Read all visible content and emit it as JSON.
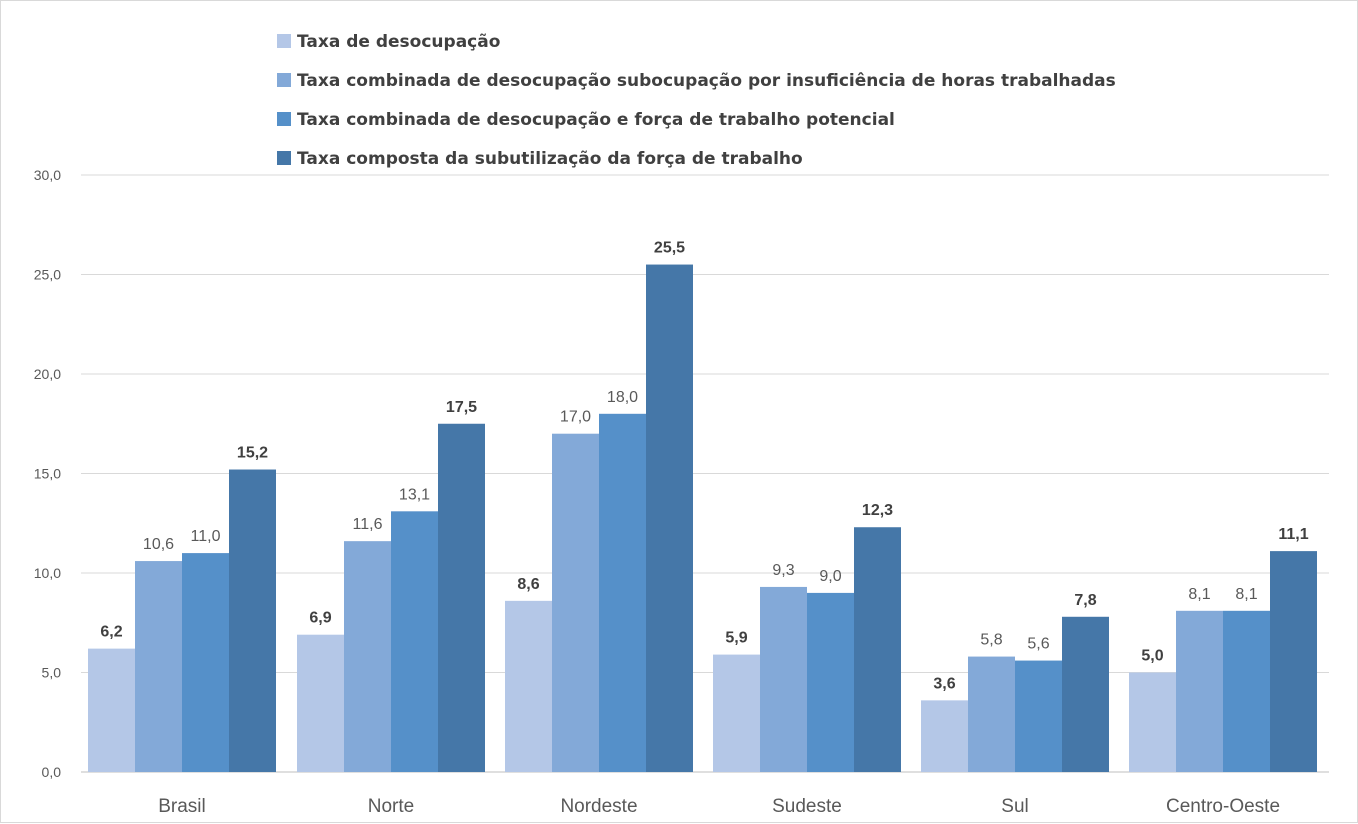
{
  "chart_data": {
    "type": "bar",
    "categories": [
      "Brasil",
      "Norte",
      "Nordeste",
      "Sudeste",
      "Sul",
      "Centro-Oeste"
    ],
    "series": [
      {
        "name": "Taxa de desocupação",
        "values": [
          6.2,
          6.9,
          8.6,
          5.9,
          3.6,
          5.0
        ],
        "labels": [
          "6,2",
          "6,9",
          "8,6",
          "5,9",
          "3,6",
          "5,0"
        ],
        "label_bold": true,
        "color": "#b4c7e7"
      },
      {
        "name": "Taxa combinada de desocupação subocupação por insuficiência de horas trabalhadas",
        "values": [
          10.6,
          11.6,
          17.0,
          9.3,
          5.8,
          8.1
        ],
        "labels": [
          "10,6",
          "11,6",
          "17,0",
          "9,3",
          "5,8",
          "8,1"
        ],
        "label_bold": false,
        "color": "#83a9d8"
      },
      {
        "name": "Taxa combinada de desocupação e força de trabalho potencial",
        "values": [
          11.0,
          13.1,
          18.0,
          9.0,
          5.6,
          8.1
        ],
        "labels": [
          "11,0",
          "13,1",
          "18,0",
          "9,0",
          "5,6",
          "8,1"
        ],
        "label_bold": false,
        "color": "#5590c9"
      },
      {
        "name": "Taxa composta da subutilização da força de trabalho",
        "values": [
          15.2,
          17.5,
          25.5,
          12.3,
          7.8,
          11.1
        ],
        "labels": [
          "15,2",
          "17,5",
          "25,5",
          "12,3",
          "7,8",
          "11,1"
        ],
        "label_bold": true,
        "color": "#4577a8"
      }
    ],
    "yticks": [
      "0,0",
      "5,0",
      "10,0",
      "15,0",
      "20,0",
      "25,0",
      "30,0"
    ],
    "ylim": [
      0,
      30
    ],
    "grid": true,
    "legend_position": "top",
    "title": "",
    "xlabel": "",
    "ylabel": ""
  }
}
